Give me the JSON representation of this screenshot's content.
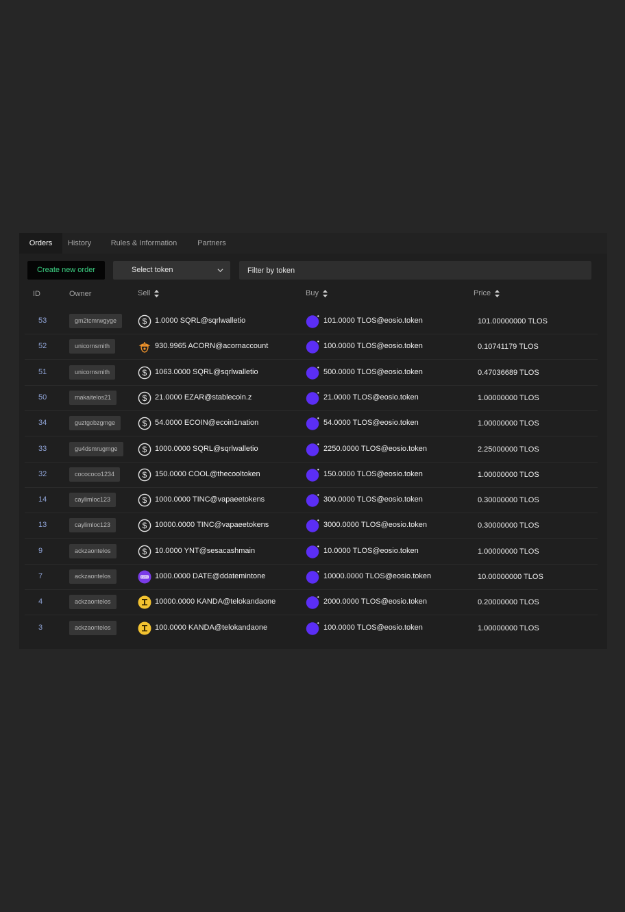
{
  "tabs": [
    {
      "label": "Orders",
      "active": true
    },
    {
      "label": "History",
      "active": false
    },
    {
      "label": "Rules & Information",
      "active": false
    },
    {
      "label": "Partners",
      "active": false
    }
  ],
  "toolbar": {
    "create_label": "Create new order",
    "select_label": "Select token",
    "filter_placeholder": "Filter by token"
  },
  "columns": {
    "id": "ID",
    "owner": "Owner",
    "sell": "Sell",
    "buy": "Buy",
    "price": "Price"
  },
  "colors": {
    "accent_green": "#3ccf82",
    "tlos_purple": "#5b2ef5",
    "id_blue": "#8fa3d6"
  },
  "orders": [
    {
      "id": "53",
      "owner": "gm2tcmrwgyge",
      "sell_icon": "dollar-coin-icon",
      "sell": "1.0000 SQRL@sqrlwalletio",
      "buy_icon": "tlos-coin-icon",
      "buy": "101.0000 TLOS@eosio.token",
      "price": "101.00000000 TLOS"
    },
    {
      "id": "52",
      "owner": "unicornsmith",
      "sell_icon": "acorn-icon",
      "sell": "930.9965 ACORN@acornaccount",
      "buy_icon": "tlos-coin-icon",
      "buy": "100.0000 TLOS@eosio.token",
      "price": "0.10741179 TLOS"
    },
    {
      "id": "51",
      "owner": "unicornsmith",
      "sell_icon": "dollar-coin-icon",
      "sell": "1063.0000 SQRL@sqrlwalletio",
      "buy_icon": "tlos-coin-icon",
      "buy": "500.0000 TLOS@eosio.token",
      "price": "0.47036689 TLOS"
    },
    {
      "id": "50",
      "owner": "makaitelos21",
      "sell_icon": "dollar-coin-icon",
      "sell": "21.0000 EZAR@stablecoin.z",
      "buy_icon": "tlos-coin-icon",
      "buy": "21.0000 TLOS@eosio.token",
      "price": "1.00000000 TLOS"
    },
    {
      "id": "34",
      "owner": "guztgobzgmge",
      "sell_icon": "dollar-coin-icon",
      "sell": "54.0000 ECOIN@ecoin1nation",
      "buy_icon": "tlos-coin-icon",
      "buy": "54.0000 TLOS@eosio.token",
      "price": "1.00000000 TLOS"
    },
    {
      "id": "33",
      "owner": "gu4dsmrugmge",
      "sell_icon": "dollar-coin-icon",
      "sell": "1000.0000 SQRL@sqrlwalletio",
      "buy_icon": "tlos-coin-icon",
      "buy": "2250.0000 TLOS@eosio.token",
      "price": "2.25000000 TLOS"
    },
    {
      "id": "32",
      "owner": "cocococo1234",
      "sell_icon": "dollar-coin-icon",
      "sell": "150.0000 COOL@thecooltoken",
      "buy_icon": "tlos-coin-icon",
      "buy": "150.0000 TLOS@eosio.token",
      "price": "1.00000000 TLOS"
    },
    {
      "id": "14",
      "owner": "caylimloc123",
      "sell_icon": "dollar-coin-icon",
      "sell": "1000.0000 TINC@vapaeetokens",
      "buy_icon": "tlos-coin-icon",
      "buy": "300.0000 TLOS@eosio.token",
      "price": "0.30000000 TLOS"
    },
    {
      "id": "13",
      "owner": "caylimloc123",
      "sell_icon": "dollar-coin-icon",
      "sell": "10000.0000 TINC@vapaeetokens",
      "buy_icon": "tlos-coin-icon",
      "buy": "3000.0000 TLOS@eosio.token",
      "price": "0.30000000 TLOS"
    },
    {
      "id": "9",
      "owner": "ackzaontelos",
      "sell_icon": "dollar-coin-icon",
      "sell": "10.0000 YNT@sesacashmain",
      "buy_icon": "tlos-coin-icon",
      "buy": "10.0000 TLOS@eosio.token",
      "price": "1.00000000 TLOS"
    },
    {
      "id": "7",
      "owner": "ackzaontelos",
      "sell_icon": "date-token-icon",
      "sell": "1000.0000 DATE@ddatemintone",
      "buy_icon": "tlos-coin-icon",
      "buy": "10000.0000 TLOS@eosio.token",
      "price": "10.00000000 TLOS"
    },
    {
      "id": "4",
      "owner": "ackzaontelos",
      "sell_icon": "kanda-coin-icon",
      "sell": "10000.0000 KANDA@telokandaone",
      "buy_icon": "tlos-coin-icon",
      "buy": "2000.0000 TLOS@eosio.token",
      "price": "0.20000000 TLOS"
    },
    {
      "id": "3",
      "owner": "ackzaontelos",
      "sell_icon": "kanda-coin-icon",
      "sell": "100.0000 KANDA@telokandaone",
      "buy_icon": "tlos-coin-icon",
      "buy": "100.0000 TLOS@eosio.token",
      "price": "1.00000000 TLOS"
    }
  ]
}
